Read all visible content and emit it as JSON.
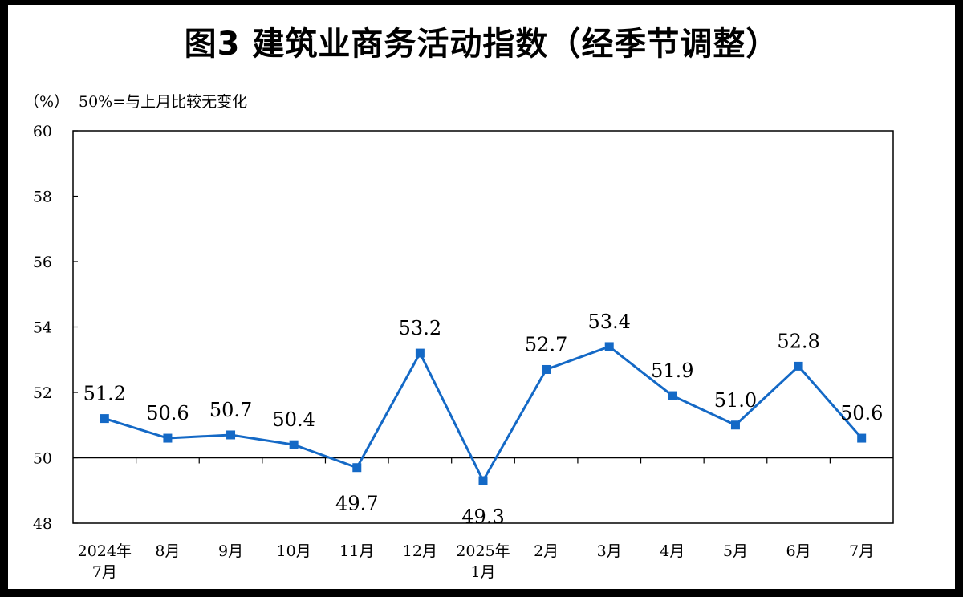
{
  "chart_data": {
    "type": "line",
    "title": "图3  建筑业商务活动指数（经季节调整）",
    "ylabel": "（%）",
    "note": "50%=与上月比较无变化",
    "categories": [
      [
        "2024年",
        "7月"
      ],
      [
        "8月"
      ],
      [
        "9月"
      ],
      [
        "10月"
      ],
      [
        "11月"
      ],
      [
        "12月"
      ],
      [
        "2025年",
        "1月"
      ],
      [
        "2月"
      ],
      [
        "3月"
      ],
      [
        "4月"
      ],
      [
        "5月"
      ],
      [
        "6月"
      ],
      [
        "7月"
      ]
    ],
    "values": [
      51.2,
      50.6,
      50.7,
      50.4,
      49.7,
      53.2,
      49.3,
      52.7,
      53.4,
      51.9,
      51.0,
      52.8,
      50.6
    ],
    "data_labels": [
      "51.2",
      "50.6",
      "50.7",
      "50.4",
      "49.7",
      "53.2",
      "49.3",
      "52.7",
      "53.4",
      "51.9",
      "51.0",
      "52.8",
      "50.6"
    ],
    "label_position": [
      "above",
      "above",
      "above",
      "above",
      "below",
      "above",
      "below",
      "above",
      "above",
      "above",
      "above",
      "above",
      "above"
    ],
    "ylim": [
      48,
      60
    ],
    "yticks": [
      48,
      50,
      52,
      54,
      56,
      58,
      60
    ],
    "reference_line": 50,
    "line_color": "#1469c6",
    "marker": "square"
  }
}
